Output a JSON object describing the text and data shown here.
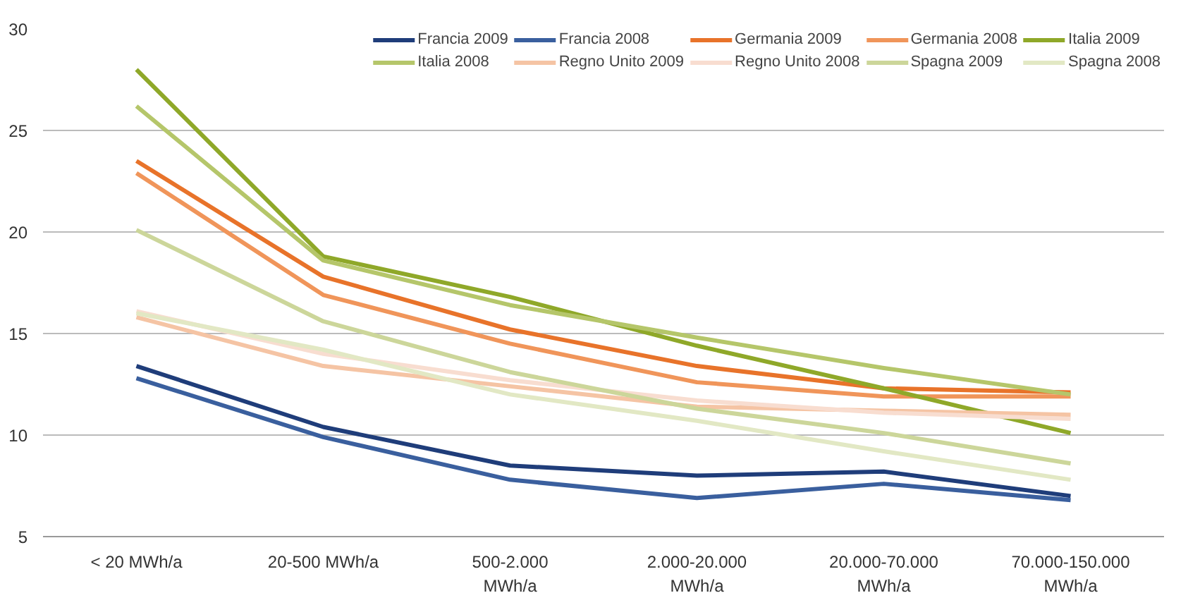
{
  "chart_data": {
    "type": "line",
    "categories": [
      "< 20 MWh/a",
      "20-500 MWh/a",
      "500-2.000 MWh/a",
      "2.000-20.000 MWh/a",
      "20.000-70.000 MWh/a",
      "70.000-150.000 MWh/a"
    ],
    "ylim": [
      5,
      30
    ],
    "yticks": [
      5,
      10,
      15,
      20,
      25,
      30
    ],
    "grid": "y",
    "legend": "top right",
    "marker": "none",
    "line_style": "solid",
    "series": [
      {
        "name": "Francia 2009",
        "color": "#1f3d7a",
        "values": [
          13.4,
          10.4,
          8.5,
          8.0,
          8.2,
          7.0
        ]
      },
      {
        "name": "Francia 2008",
        "color": "#3a5f9e",
        "values": [
          12.8,
          9.9,
          7.8,
          6.9,
          7.6,
          6.8
        ]
      },
      {
        "name": "Germania 2009",
        "color": "#e8732a",
        "values": [
          23.5,
          17.8,
          15.2,
          13.4,
          12.3,
          12.1
        ]
      },
      {
        "name": "Germania 2008",
        "color": "#f0955a",
        "values": [
          22.9,
          16.9,
          14.5,
          12.6,
          11.9,
          11.9
        ]
      },
      {
        "name": "Italia 2009",
        "color": "#8fa829",
        "values": [
          28.0,
          18.8,
          16.8,
          14.4,
          12.3,
          10.1
        ]
      },
      {
        "name": "Italia 2008",
        "color": "#b5c66a",
        "values": [
          26.2,
          18.6,
          16.4,
          14.8,
          13.3,
          12.0
        ]
      },
      {
        "name": "Regno Unito 2009",
        "color": "#f5c4a4",
        "values": [
          15.8,
          13.4,
          12.4,
          11.4,
          11.2,
          11.0
        ]
      },
      {
        "name": "Regno Unito 2008",
        "color": "#f8ddd0",
        "values": [
          16.1,
          14.0,
          12.7,
          11.7,
          11.1,
          10.8
        ]
      },
      {
        "name": "Spagna 2009",
        "color": "#ccd69a",
        "values": [
          20.1,
          15.6,
          13.1,
          11.3,
          10.1,
          8.6
        ]
      },
      {
        "name": "Spagna 2008",
        "color": "#e2e8c4",
        "values": [
          16.0,
          14.2,
          12.0,
          10.7,
          9.2,
          7.8
        ]
      }
    ]
  }
}
